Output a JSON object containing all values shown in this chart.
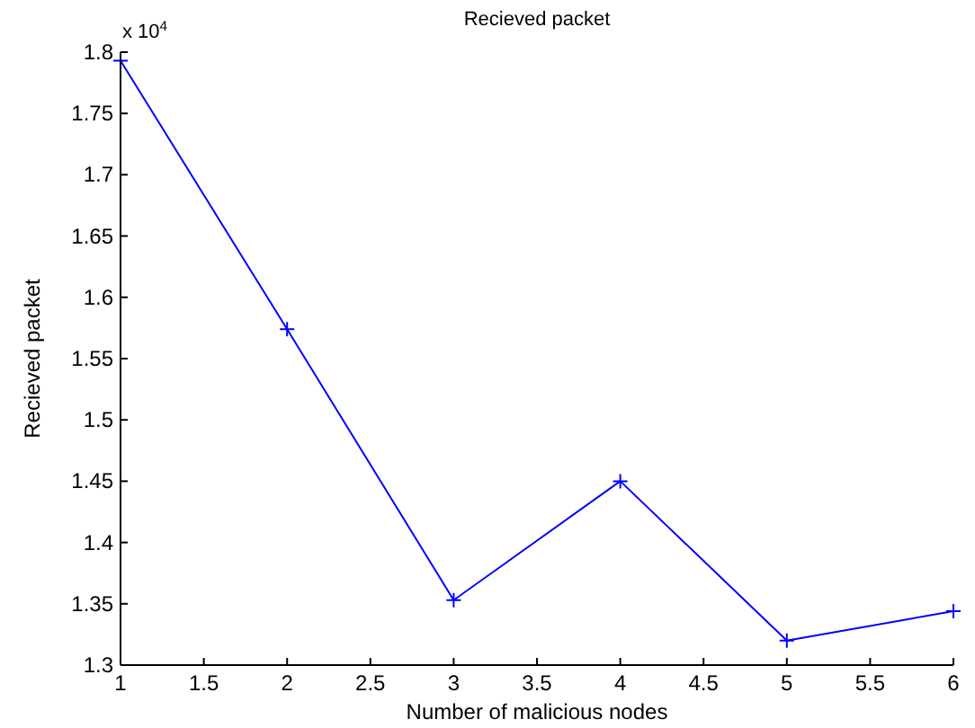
{
  "chart_data": {
    "type": "line",
    "title": "Recieved packet",
    "xlabel": "Number of malicious nodes",
    "ylabel": "Recieved packet",
    "annotations": [
      "x 10$^{4}$"
    ],
    "x": [
      1,
      2,
      3,
      4,
      5,
      6
    ],
    "series": [
      {
        "color": "#0000ff",
        "values": [
          1.793,
          1.574,
          1.353,
          1.45,
          1.32,
          1.344
        ]
      }
    ],
    "xlim": [
      1,
      6
    ],
    "xticks": [
      1,
      1.5,
      2,
      2.5,
      3,
      3.5,
      4,
      4.5,
      5,
      5.5,
      6
    ],
    "ylim": [
      1.3,
      1.8
    ],
    "yticks": [
      1.3,
      1.35,
      1.4,
      1.45,
      1.5,
      1.55,
      1.6,
      1.65,
      1.7,
      1.75,
      1.8
    ],
    "marker": "cross",
    "line_style": "solid",
    "grid": false
  }
}
